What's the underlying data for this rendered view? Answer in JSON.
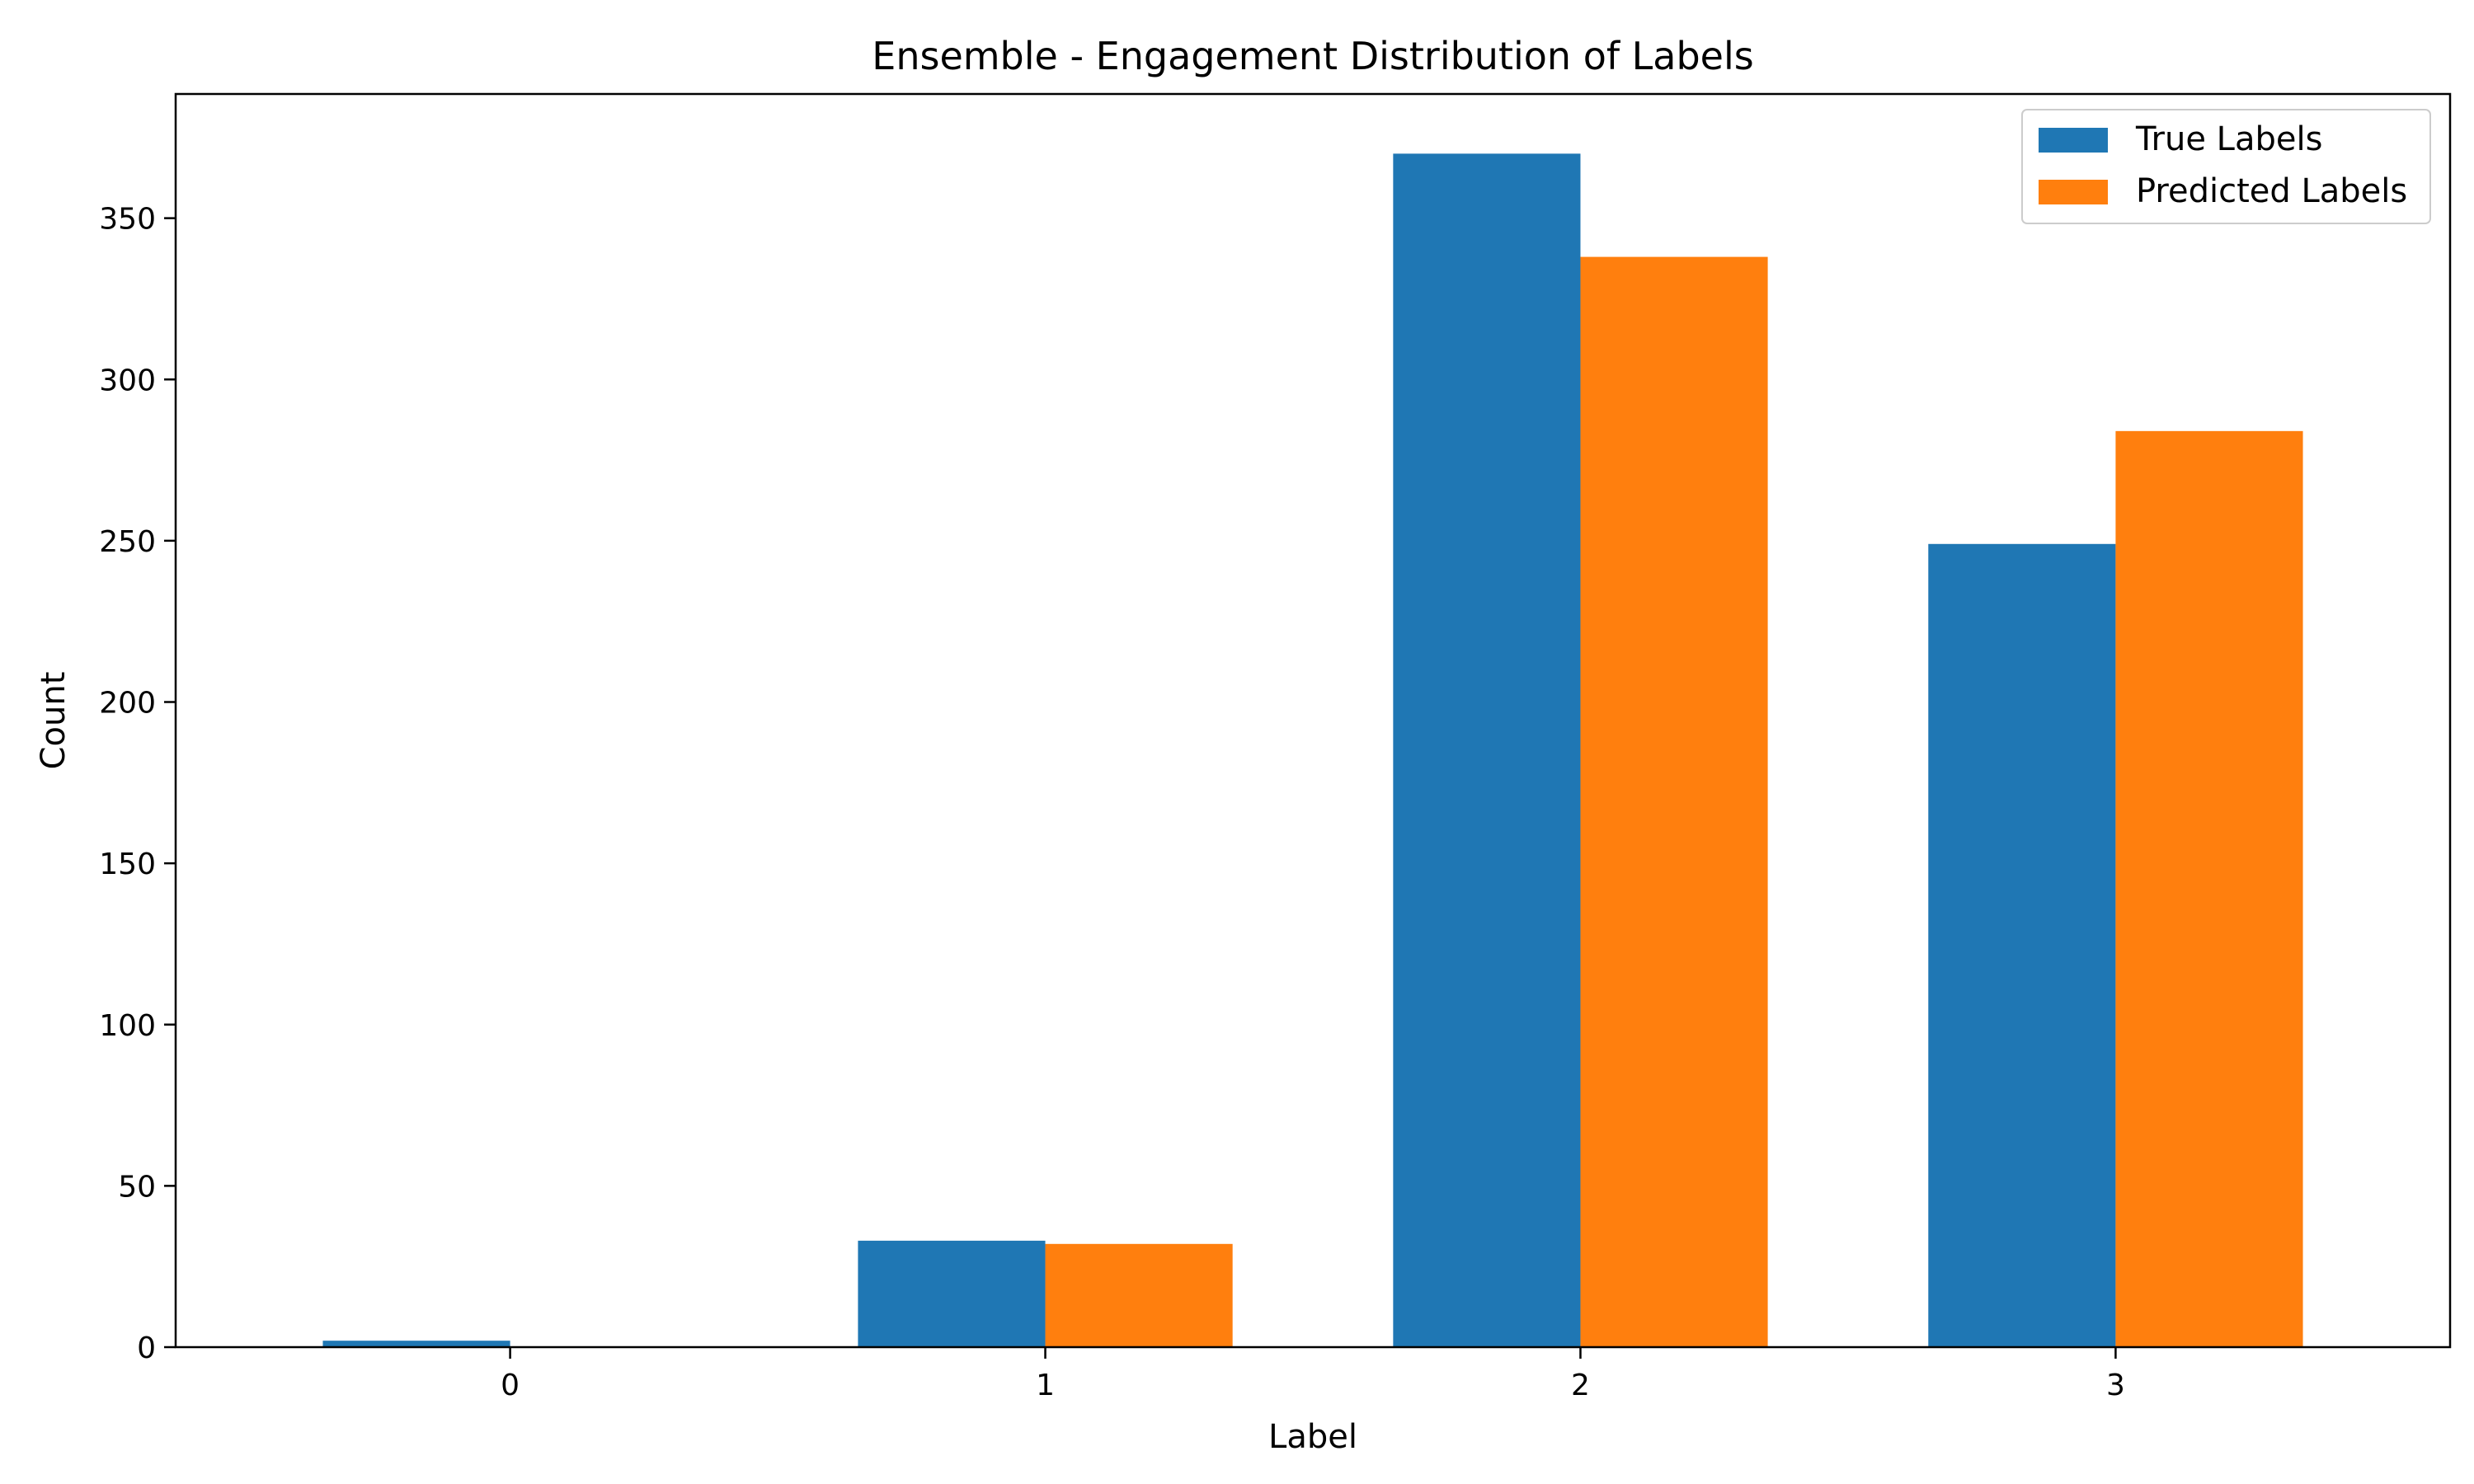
{
  "chart_data": {
    "type": "bar",
    "title": "Ensemble - Engagement Distribution of Labels",
    "xlabel": "Label",
    "ylabel": "Count",
    "categories": [
      "0",
      "1",
      "2",
      "3"
    ],
    "series": [
      {
        "name": "True Labels",
        "values": [
          2,
          33,
          370,
          249
        ],
        "color": "#1f77b4"
      },
      {
        "name": "Predicted Labels",
        "values": [
          0,
          32,
          338,
          284
        ],
        "color": "#ff7f0e"
      }
    ],
    "ylim": [
      0,
      388.5
    ],
    "yticks": [
      0,
      50,
      100,
      150,
      200,
      250,
      300,
      350
    ],
    "grid": false,
    "legend": "top-right"
  }
}
